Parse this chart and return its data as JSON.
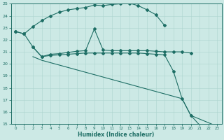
{
  "xlabel": "Humidex (Indice chaleur)",
  "xlim": [
    -0.5,
    23.5
  ],
  "ylim": [
    15,
    25
  ],
  "yticks": [
    15,
    16,
    17,
    18,
    19,
    20,
    21,
    22,
    23,
    24,
    25
  ],
  "xticks": [
    0,
    1,
    2,
    3,
    4,
    5,
    6,
    7,
    8,
    9,
    10,
    11,
    12,
    13,
    14,
    15,
    16,
    17,
    18,
    19,
    20,
    21,
    22,
    23
  ],
  "bg_color": "#cce9e5",
  "grid_color": "#add4cf",
  "line_color": "#1e6e65",
  "series": [
    {
      "x": [
        0,
        1,
        2,
        3,
        4,
        5,
        6,
        7,
        8,
        9,
        10,
        11,
        12,
        13,
        14,
        15,
        16,
        17
      ],
      "y": [
        22.7,
        22.5,
        23.1,
        23.6,
        24.0,
        24.3,
        24.5,
        24.6,
        24.7,
        24.9,
        24.85,
        24.95,
        25.0,
        25.05,
        24.85,
        24.5,
        24.1,
        23.2
      ],
      "marker": true
    },
    {
      "x": [
        0,
        1,
        2,
        3,
        4,
        5,
        6,
        7,
        8,
        9,
        10,
        11,
        12,
        13,
        14,
        15,
        16,
        17,
        18,
        19,
        20
      ],
      "y": [
        22.7,
        22.5,
        21.4,
        20.6,
        20.8,
        20.85,
        20.95,
        21.05,
        21.1,
        22.9,
        21.15,
        21.1,
        21.1,
        21.1,
        21.1,
        21.1,
        21.05,
        21.0,
        21.0,
        21.0,
        20.9
      ],
      "marker": true
    },
    {
      "x": [
        2,
        3,
        4,
        5,
        6,
        7,
        8,
        9,
        10,
        11,
        12,
        13,
        14,
        15,
        16,
        17,
        18,
        19,
        20,
        21,
        22,
        23
      ],
      "y": [
        21.4,
        20.6,
        20.7,
        20.75,
        20.8,
        20.85,
        20.9,
        20.9,
        20.9,
        20.9,
        20.9,
        20.9,
        20.9,
        20.85,
        20.8,
        20.75,
        19.4,
        17.1,
        15.7,
        14.9,
        14.85,
        14.8
      ],
      "marker": true
    },
    {
      "x": [
        2,
        3,
        4,
        5,
        6,
        7,
        8,
        9,
        10,
        11,
        12,
        13,
        14,
        15,
        16,
        17,
        18,
        19,
        20,
        21,
        22,
        23
      ],
      "y": [
        20.6,
        20.3,
        20.1,
        19.9,
        19.7,
        19.5,
        19.3,
        19.1,
        18.9,
        18.7,
        18.5,
        18.3,
        18.1,
        17.9,
        17.7,
        17.5,
        17.3,
        17.1,
        15.7,
        15.4,
        15.1,
        14.8
      ],
      "marker": false
    }
  ]
}
